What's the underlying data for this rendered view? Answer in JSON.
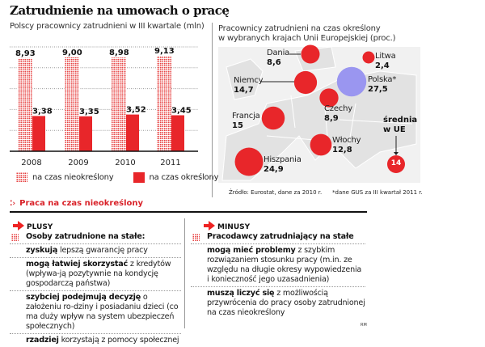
{
  "title": "Zatrudnienie na umowach o pracę",
  "chart_data": [
    {
      "type": "bar",
      "title": "Polscy pracownicy zatrudnieni w III kwartale (mln)",
      "categories": [
        "2008",
        "2009",
        "2010",
        "2011"
      ],
      "series": [
        {
          "name": "na czas nieokreślony",
          "values": [
            8.93,
            9.0,
            8.98,
            9.13
          ],
          "labels": [
            "8,93",
            "9,00",
            "8,98",
            "9,13"
          ],
          "color": "#e63a3a",
          "pattern": "dotted"
        },
        {
          "name": "na czas określony",
          "values": [
            3.38,
            3.35,
            3.52,
            3.45
          ],
          "labels": [
            "3,38",
            "3,35",
            "3,52",
            "3,45"
          ],
          "color": "#e8262a",
          "pattern": "solid"
        }
      ],
      "ylim": [
        0,
        10
      ],
      "grid": true,
      "legend": "bottom"
    },
    {
      "type": "scatter",
      "title_line1": "Pracownicy zatrudnieni na czas określony",
      "title_line2": "w wybranych krajach Unii Europejskiej (proc.)",
      "points": [
        {
          "name": "Dania",
          "value": 8.6,
          "label": "8,6",
          "color": "#e8262a"
        },
        {
          "name": "Litwa",
          "value": 2.4,
          "label": "2,4",
          "color": "#e8262a"
        },
        {
          "name": "Niemcy",
          "value": 14.7,
          "label": "14,7",
          "color": "#e8262a"
        },
        {
          "name": "Polska*",
          "value": 27.5,
          "label": "27,5",
          "color": "#9a96f0"
        },
        {
          "name": "Czechy",
          "value": 8.9,
          "label": "8,9",
          "color": "#e8262a"
        },
        {
          "name": "Francja",
          "value": 15,
          "label": "15",
          "color": "#e8262a"
        },
        {
          "name": "Włochy",
          "value": 12.8,
          "label": "12,8",
          "color": "#e8262a"
        },
        {
          "name": "Hiszpania",
          "value": 24.9,
          "label": "24,9",
          "color": "#e8262a"
        }
      ],
      "average": {
        "label_line1": "średnia",
        "label_line2": "w UE",
        "value": "14"
      },
      "source": "Źródło: Eurostat, dane za 2010 r.",
      "note": "*dane GUS za III kwartał 2011 r."
    }
  ],
  "section": {
    "title": "Praca na czas nieokreślony",
    "plus": {
      "label": "PLUSY",
      "heading": "Osoby zatrudnione na stałe:",
      "items": [
        {
          "bold": "zyskują",
          "text": " lepszą gwarancję pracy"
        },
        {
          "bold": "mogą łatwiej skorzystać",
          "text": " z kredytów (wpływa-ją pozytywnie na kondycję gospodarczą państwa)"
        },
        {
          "bold": "szybciej podejmują decyzję",
          "text": " o założeniu ro-dziny i posiadaniu dzieci (co ma duży wpływ na system ubezpieczeń społecznych)"
        },
        {
          "bold": "rzadziej",
          "text": " korzystają z pomocy społecznej"
        }
      ]
    },
    "minus": {
      "label": "MINUSY",
      "heading": "Pracodawcy zatrudniający na stałe",
      "items": [
        {
          "bold": "mogą mieć problemy",
          "text": " z szybkim rozwiązaniem stosunku pracy (m.in. ze względu na długie okresy wypowiedzenia i konieczność jego uzasadnienia)"
        },
        {
          "bold": "muszą liczyć się",
          "text": " z możliwością przywrócenia do pracy osoby zatrudnionej na czas nieokreślony"
        }
      ]
    }
  },
  "credit": "RM"
}
